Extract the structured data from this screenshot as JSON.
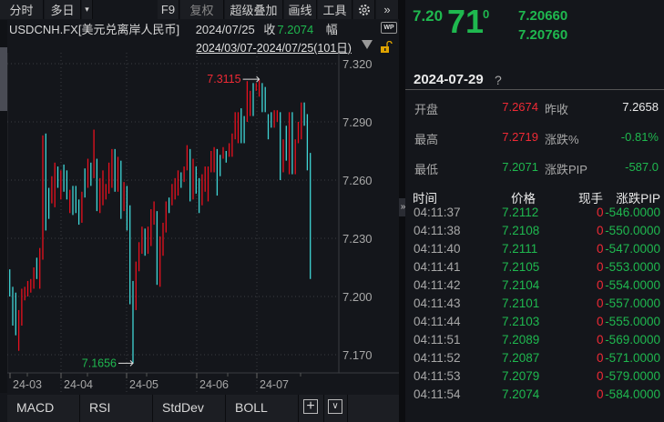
{
  "toolbar": {
    "items": [
      "分时",
      "多日",
      "▾",
      "F9",
      "复权",
      "超级叠加",
      "画线",
      "工具"
    ],
    "gear_icon": "gear-icon",
    "expand_icon": "double-chevron-right-icon"
  },
  "info": {
    "symbol": "USDCNH.FX[美元兑离岸人民币]",
    "date": "2024/07/25",
    "close_label": "收",
    "close": "7.2074",
    "amp_label": "幅",
    "wp_badge": "WP"
  },
  "range": {
    "label": "2024/03/07-2024/07/25(101日)",
    "dropdown_icon": "triangle-down-icon",
    "lock_icon": "unlock-icon"
  },
  "colors": {
    "up": "#e8101e",
    "down": "#3fd6d6",
    "green": "#1fb84f",
    "red": "#ef2a35",
    "bg": "#14161b"
  },
  "chart_data": {
    "type": "ohlc-range",
    "ylim": [
      7.16,
      7.325
    ],
    "yticks": [
      "7.320",
      "7.290",
      "7.260",
      "7.230",
      "7.200",
      "7.170"
    ],
    "xticks": [
      "24-03",
      "24-04",
      "24-05",
      "24-06",
      "24-07"
    ],
    "max_label": "7.3115",
    "min_label": "7.1656",
    "bars": [
      [
        7.214,
        7.2,
        "d"
      ],
      [
        7.205,
        7.185,
        "d"
      ],
      [
        7.202,
        7.18,
        "d"
      ],
      [
        7.193,
        7.172,
        "u"
      ],
      [
        7.204,
        7.185,
        "u"
      ],
      [
        7.205,
        7.198,
        "u"
      ],
      [
        7.208,
        7.2,
        "u"
      ],
      [
        7.209,
        7.202,
        "u"
      ],
      [
        7.215,
        7.204,
        "u"
      ],
      [
        7.22,
        7.209,
        "d"
      ],
      [
        7.225,
        7.204,
        "u"
      ],
      [
        7.283,
        7.219,
        "u"
      ],
      [
        7.284,
        7.234,
        "d"
      ],
      [
        7.256,
        7.24,
        "d"
      ],
      [
        7.262,
        7.248,
        "u"
      ],
      [
        7.269,
        7.246,
        "u"
      ],
      [
        7.267,
        7.256,
        "d"
      ],
      [
        7.265,
        7.25,
        "u"
      ],
      [
        7.268,
        7.254,
        "d"
      ],
      [
        7.265,
        7.25,
        "d"
      ],
      [
        7.255,
        7.243,
        "u"
      ],
      [
        7.257,
        7.242,
        "d"
      ],
      [
        7.257,
        7.243,
        "d"
      ],
      [
        7.25,
        7.237,
        "d"
      ],
      [
        7.254,
        7.238,
        "u"
      ],
      [
        7.266,
        7.251,
        "d"
      ],
      [
        7.271,
        7.256,
        "u"
      ],
      [
        7.269,
        7.257,
        "d"
      ],
      [
        7.286,
        7.261,
        "u"
      ],
      [
        7.271,
        7.244,
        "d"
      ],
      [
        7.261,
        7.243,
        "u"
      ],
      [
        7.265,
        7.247,
        "u"
      ],
      [
        7.258,
        7.25,
        "u"
      ],
      [
        7.269,
        7.253,
        "u"
      ],
      [
        7.276,
        7.256,
        "u"
      ],
      [
        7.276,
        7.254,
        "d"
      ],
      [
        7.272,
        7.254,
        "u"
      ],
      [
        7.27,
        7.24,
        "d"
      ],
      [
        7.259,
        7.244,
        "u"
      ],
      [
        7.257,
        7.234,
        "d"
      ],
      [
        7.247,
        7.196,
        "d"
      ],
      [
        7.208,
        7.1656,
        "d"
      ],
      [
        7.218,
        7.193,
        "u"
      ],
      [
        7.228,
        7.213,
        "u"
      ],
      [
        7.236,
        7.222,
        "u"
      ],
      [
        7.235,
        7.221,
        "d"
      ],
      [
        7.236,
        7.222,
        "u"
      ],
      [
        7.245,
        7.226,
        "u"
      ],
      [
        7.249,
        7.237,
        "u"
      ],
      [
        7.244,
        7.206,
        "d"
      ],
      [
        7.231,
        7.205,
        "u"
      ],
      [
        7.238,
        7.221,
        "u"
      ],
      [
        7.249,
        7.233,
        "u"
      ],
      [
        7.251,
        7.243,
        "d"
      ],
      [
        7.258,
        7.247,
        "u"
      ],
      [
        7.261,
        7.25,
        "u"
      ],
      [
        7.265,
        7.252,
        "u"
      ],
      [
        7.264,
        7.256,
        "d"
      ],
      [
        7.267,
        7.259,
        "u"
      ],
      [
        7.278,
        7.265,
        "u"
      ],
      [
        7.276,
        7.249,
        "d"
      ],
      [
        7.271,
        7.25,
        "u"
      ],
      [
        7.267,
        7.253,
        "d"
      ],
      [
        7.261,
        7.243,
        "d"
      ],
      [
        7.263,
        7.247,
        "u"
      ],
      [
        7.267,
        7.254,
        "u"
      ],
      [
        7.267,
        7.249,
        "u"
      ],
      [
        7.275,
        7.264,
        "u"
      ],
      [
        7.277,
        7.264,
        "u"
      ],
      [
        7.276,
        7.252,
        "d"
      ],
      [
        7.273,
        7.262,
        "d"
      ],
      [
        7.277,
        7.271,
        "u"
      ],
      [
        7.275,
        7.269,
        "d"
      ],
      [
        7.279,
        7.272,
        "u"
      ],
      [
        7.284,
        7.272,
        "u"
      ],
      [
        7.295,
        7.281,
        "u"
      ],
      [
        7.295,
        7.279,
        "u"
      ],
      [
        7.297,
        7.279,
        "d"
      ],
      [
        7.293,
        7.279,
        "d"
      ],
      [
        7.311,
        7.29,
        "u"
      ],
      [
        7.306,
        7.293,
        "u"
      ],
      [
        7.31,
        7.293,
        "d"
      ],
      [
        7.31,
        7.306,
        "u"
      ],
      [
        7.3115,
        7.303,
        "u"
      ],
      [
        7.31,
        7.295,
        "d"
      ],
      [
        7.308,
        7.295,
        "d"
      ],
      [
        7.294,
        7.281,
        "d"
      ],
      [
        7.295,
        7.287,
        "d"
      ],
      [
        7.296,
        7.287,
        "u"
      ],
      [
        7.296,
        7.29,
        "u"
      ],
      [
        7.295,
        7.26,
        "d"
      ],
      [
        7.281,
        7.264,
        "u"
      ],
      [
        7.288,
        7.27,
        "d"
      ],
      [
        7.295,
        7.263,
        "u"
      ],
      [
        7.295,
        7.263,
        "d"
      ],
      [
        7.281,
        7.263,
        "u"
      ],
      [
        7.29,
        7.279,
        "u"
      ],
      [
        7.3,
        7.281,
        "u"
      ],
      [
        7.3,
        7.288,
        "d"
      ],
      [
        7.294,
        7.265,
        "d"
      ],
      [
        7.274,
        7.209,
        "d"
      ]
    ]
  },
  "indicators": {
    "tabs": [
      "MACD",
      "RSI",
      "StdDev",
      "BOLL"
    ],
    "add_icon": "plus-icon",
    "more_icon": "chevron-down-icon"
  },
  "quote": {
    "price_prefix": "7.20",
    "price_big": "71",
    "price_sup": "0",
    "bid": "7.20660",
    "ask": "7.20760"
  },
  "day": {
    "date": "2024-07-29",
    "help": "?"
  },
  "stats": [
    {
      "l1": "开盘",
      "v1": "7.2674",
      "c1": "r",
      "l2": "昨收",
      "v2": "7.2658",
      "c2": "w"
    },
    {
      "l1": "最高",
      "v1": "7.2719",
      "c1": "r",
      "l2": "涨跌%",
      "v2": "-0.81%",
      "c2": "g"
    },
    {
      "l1": "最低",
      "v1": "7.2071",
      "c1": "g",
      "l2": "涨跌PIP",
      "v2": "-587.0",
      "c2": "g"
    }
  ],
  "ticks": {
    "headers": [
      "时间",
      "价格",
      "现手",
      "涨跌PIP"
    ],
    "rows": [
      [
        "04:11:37",
        "7.2112",
        "0",
        "-546.0000"
      ],
      [
        "04:11:38",
        "7.2108",
        "0",
        "-550.0000"
      ],
      [
        "04:11:40",
        "7.2111",
        "0",
        "-547.0000"
      ],
      [
        "04:11:41",
        "7.2105",
        "0",
        "-553.0000"
      ],
      [
        "04:11:42",
        "7.2104",
        "0",
        "-554.0000"
      ],
      [
        "04:11:43",
        "7.2101",
        "0",
        "-557.0000"
      ],
      [
        "04:11:44",
        "7.2103",
        "0",
        "-555.0000"
      ],
      [
        "04:11:51",
        "7.2089",
        "0",
        "-569.0000"
      ],
      [
        "04:11:52",
        "7.2087",
        "0",
        "-571.0000"
      ],
      [
        "04:11:53",
        "7.2079",
        "0",
        "-579.0000"
      ],
      [
        "04:11:54",
        "7.2074",
        "0",
        "-584.0000"
      ]
    ]
  },
  "collapse_icon": "double-chevron-right-icon"
}
